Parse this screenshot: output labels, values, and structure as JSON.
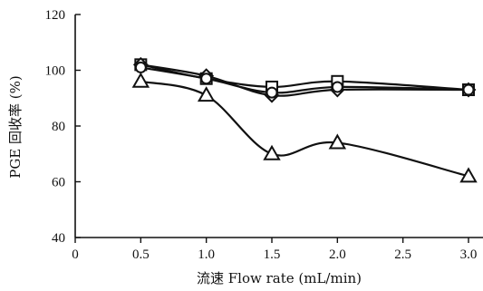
{
  "chart_data": {
    "type": "line",
    "xlabel": "流速 Flow rate (mL/min)",
    "ylabel": "PGE 回收率 (%)",
    "xlim": [
      0,
      3.0
    ],
    "ylim": [
      40,
      120
    ],
    "x_ticks": [
      0,
      0.5,
      1.0,
      1.5,
      2.0,
      2.5,
      3.0
    ],
    "x_tick_labels": [
      "0",
      "0.5",
      "1.0",
      "1.5",
      "2.0",
      "2.5",
      "3.0"
    ],
    "y_ticks": [
      40,
      60,
      80,
      100,
      120
    ],
    "y_tick_labels": [
      "40",
      "60",
      "80",
      "100",
      "120"
    ],
    "grid": false,
    "legend": "none",
    "series": [
      {
        "marker": "square",
        "x": [
          0.5,
          1.0,
          1.5,
          2.0,
          3.0
        ],
        "values": [
          102,
          97,
          94,
          96,
          93
        ]
      },
      {
        "marker": "diamond",
        "x": [
          0.5,
          1.0,
          1.5,
          2.0,
          3.0
        ],
        "values": [
          102,
          98,
          91,
          93,
          93
        ]
      },
      {
        "marker": "circle",
        "x": [
          0.5,
          1.0,
          1.5,
          2.0,
          3.0
        ],
        "values": [
          101,
          97,
          92,
          94,
          93
        ]
      },
      {
        "marker": "triangle",
        "x": [
          0.5,
          1.0,
          1.5,
          2.0,
          3.0
        ],
        "values": [
          96,
          91,
          70,
          74,
          62
        ]
      }
    ]
  }
}
